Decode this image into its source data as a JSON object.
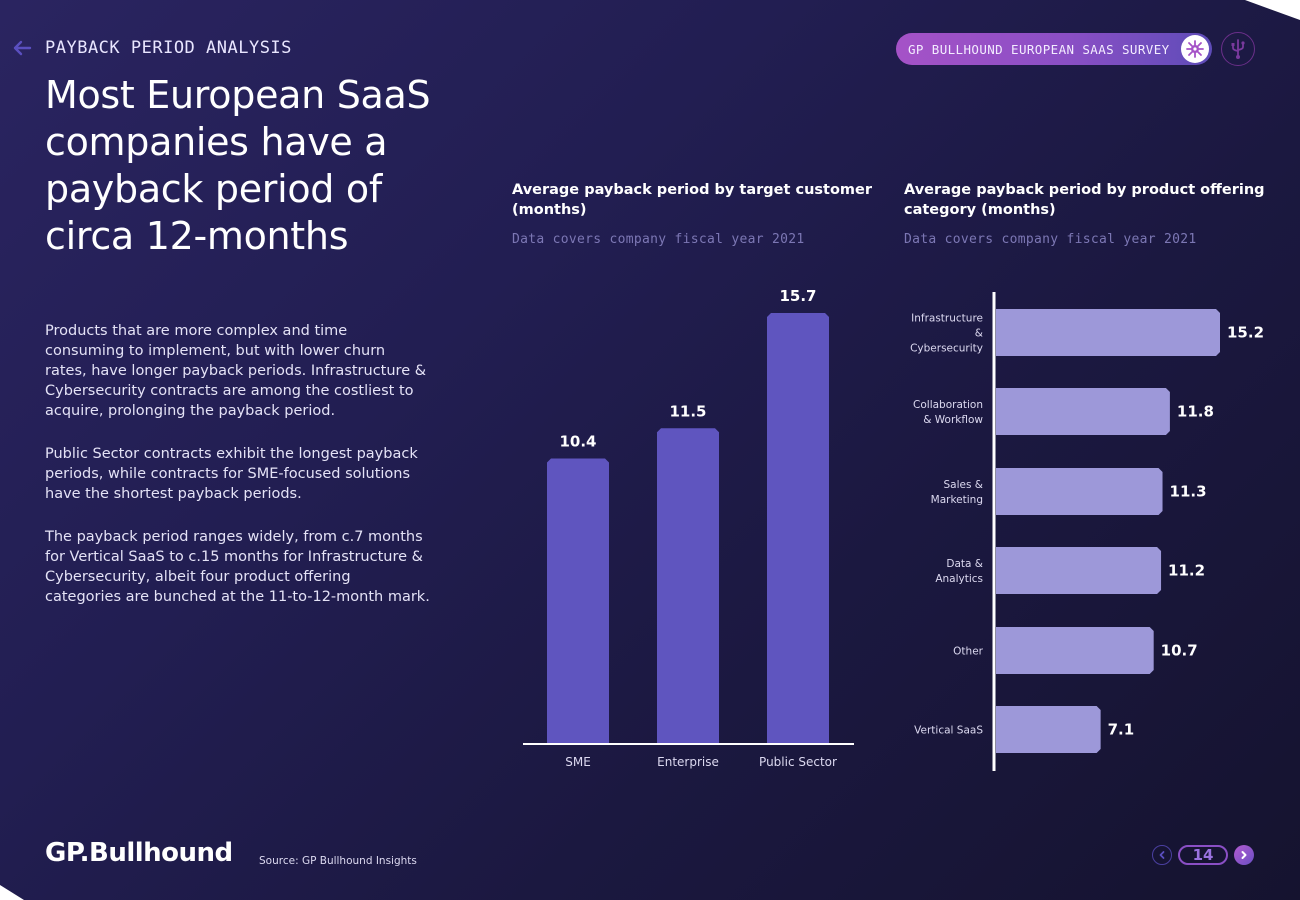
{
  "header": {
    "section_label": "PAYBACK PERIOD ANALYSIS",
    "survey_pill": "GP BULLHOUND EUROPEAN SAAS SURVEY",
    "icons": {
      "back": "arrow-left-icon",
      "pill": "bacteria-logo-icon",
      "usb": "usb-icon"
    }
  },
  "headline": "Most European SaaS companies have a payback period of circa 12-months",
  "body": [
    "Products that are more complex and time consuming to implement, but with lower churn rates, have longer payback periods. Infrastructure & Cybersecurity contracts are among the costliest to acquire, prolonging the payback period.",
    "Public Sector contracts exhibit the longest payback periods, while contracts for SME-focused solutions have the shortest payback periods.",
    "The payback period ranges widely, from c.7 months for Vertical SaaS to c.15 months for Infrastructure & Cybersecurity, albeit four product offering categories are bunched at the 11-to-12-month mark."
  ],
  "colors": {
    "bar_customer": "#5f55bf",
    "bar_category": "#9d98d9",
    "axis": "#ffffff",
    "accent": "#8a4fc5"
  },
  "chart_data": [
    {
      "type": "bar",
      "orientation": "vertical",
      "title": "Average payback period by target customer (months)",
      "subtitle": "Data covers company fiscal year 2021",
      "categories": [
        "SME",
        "Enterprise",
        "Public Sector"
      ],
      "values": [
        10.4,
        11.5,
        15.7
      ],
      "value_labels": [
        "10.4",
        "11.5",
        "15.7"
      ],
      "xlabel": "",
      "ylabel": "months",
      "ylim": [
        0,
        15.7
      ],
      "grid": false
    },
    {
      "type": "bar",
      "orientation": "horizontal",
      "title": "Average payback period by product offering category (months)",
      "subtitle": "Data covers company fiscal year 2021",
      "categories": [
        [
          "Infrastructure",
          "&",
          "Cybersecurity"
        ],
        [
          "Collaboration",
          "& Workflow"
        ],
        [
          "Sales &",
          "Marketing"
        ],
        [
          "Data &",
          "Analytics"
        ],
        [
          "Other"
        ],
        [
          "Vertical SaaS"
        ]
      ],
      "values": [
        15.2,
        11.8,
        11.3,
        11.2,
        10.7,
        7.1
      ],
      "value_labels": [
        "15.2",
        "11.8",
        "11.3",
        "11.2",
        "10.7",
        "7.1"
      ],
      "xlabel": "",
      "ylabel": "",
      "xlim": [
        0,
        15.2
      ],
      "grid": false
    }
  ],
  "footer": {
    "logo": "GP.Bullhound",
    "source": "Source: GP Bullhound Insights",
    "page_number": "14"
  }
}
